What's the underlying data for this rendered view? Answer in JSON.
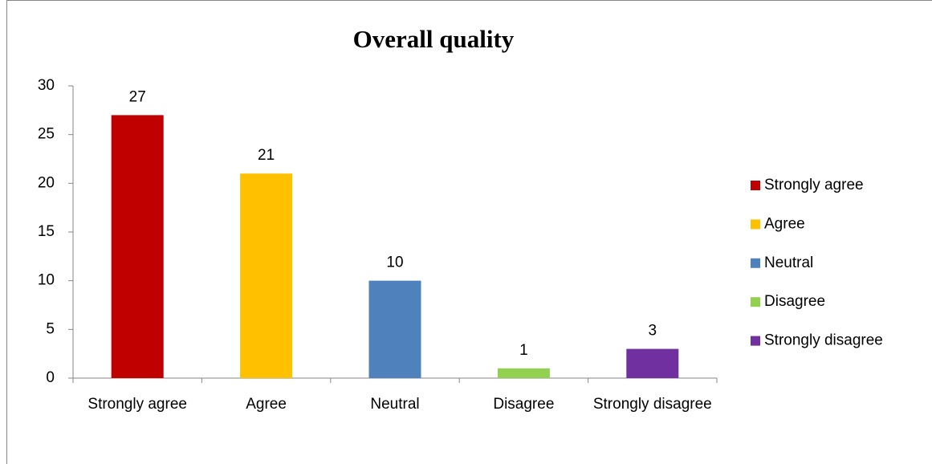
{
  "chart_data": {
    "type": "bar",
    "title": "Overall quality",
    "categories": [
      "Strongly agree",
      "Agree",
      "Neutral",
      "Disagree",
      "Strongly disagree"
    ],
    "values": [
      27,
      21,
      10,
      1,
      3
    ],
    "colors": [
      "#c00000",
      "#ffc000",
      "#4f81bd",
      "#92d050",
      "#7030a0"
    ],
    "ylim": [
      0,
      30
    ],
    "yticks": [
      0,
      5,
      10,
      15,
      20,
      25,
      30
    ],
    "grid": false,
    "legend": "right"
  }
}
